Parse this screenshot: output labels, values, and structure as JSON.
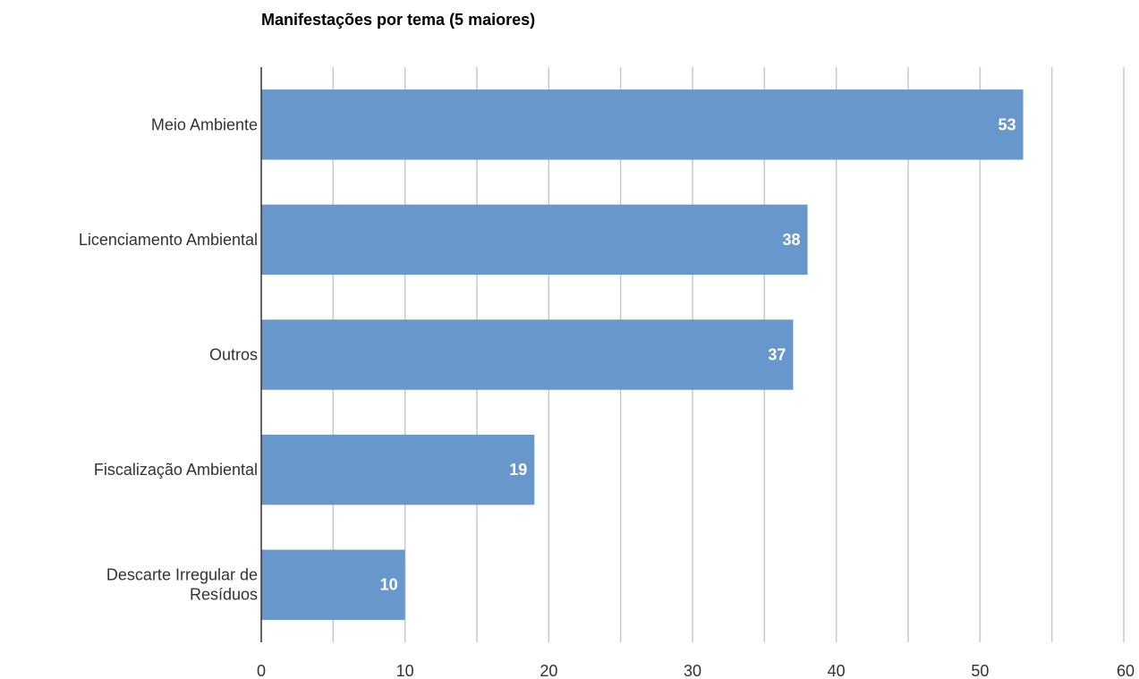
{
  "chart_data": {
    "type": "bar",
    "orientation": "horizontal",
    "title": "Manifestações por tema (5 maiores)",
    "categories": [
      [
        "Meio Ambiente"
      ],
      [
        "Licenciamento Ambiental"
      ],
      [
        "Outros"
      ],
      [
        "Fiscalização Ambiental"
      ],
      [
        "Descarte Irregular de",
        "Resíduos"
      ]
    ],
    "values": [
      53,
      38,
      37,
      19,
      10
    ],
    "xlim": [
      0,
      60
    ],
    "x_ticks": [
      0,
      10,
      20,
      30,
      40,
      50,
      60
    ],
    "grid": true,
    "bar_color": "#6897cc",
    "data_label_color": "#ffffff",
    "xlabel": "",
    "ylabel": ""
  }
}
